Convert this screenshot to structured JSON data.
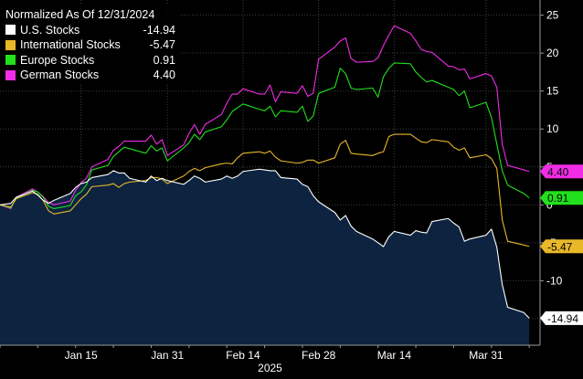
{
  "chart_data": {
    "type": "line",
    "title": "Normalized As Of 12/31/2024",
    "xlabel": "2025",
    "ylabel": "",
    "ylim": [
      -18.5,
      27
    ],
    "yticks": [
      -15,
      -10,
      -5,
      0,
      5,
      10,
      15,
      20,
      25
    ],
    "x_tick_labels": [
      "Jan 15",
      "Jan 31",
      "Feb 14",
      "Feb 28",
      "Mar 14",
      "Mar 31"
    ],
    "x_tick_dates": [
      "2025-01-15",
      "2025-01-31",
      "2025-02-14",
      "2025-02-28",
      "2025-03-14",
      "2025-03-31"
    ],
    "x_range": [
      "2024-12-31",
      "2025-04-10"
    ],
    "grid": true,
    "legend_position": "top-left",
    "axis_side": "right",
    "x": [
      "2024-12-31",
      "2025-01-02",
      "2025-01-03",
      "2025-01-06",
      "2025-01-07",
      "2025-01-08",
      "2025-01-09",
      "2025-01-10",
      "2025-01-13",
      "2025-01-14",
      "2025-01-15",
      "2025-01-16",
      "2025-01-17",
      "2025-01-20",
      "2025-01-21",
      "2025-01-22",
      "2025-01-23",
      "2025-01-24",
      "2025-01-27",
      "2025-01-28",
      "2025-01-29",
      "2025-01-30",
      "2025-01-31",
      "2025-02-03",
      "2025-02-04",
      "2025-02-05",
      "2025-02-06",
      "2025-02-07",
      "2025-02-10",
      "2025-02-11",
      "2025-02-12",
      "2025-02-13",
      "2025-02-14",
      "2025-02-17",
      "2025-02-18",
      "2025-02-19",
      "2025-02-20",
      "2025-02-21",
      "2025-02-24",
      "2025-02-25",
      "2025-02-26",
      "2025-02-27",
      "2025-02-28",
      "2025-03-03",
      "2025-03-04",
      "2025-03-05",
      "2025-03-06",
      "2025-03-07",
      "2025-03-10",
      "2025-03-11",
      "2025-03-12",
      "2025-03-13",
      "2025-03-14",
      "2025-03-17",
      "2025-03-18",
      "2025-03-19",
      "2025-03-20",
      "2025-03-21",
      "2025-03-24",
      "2025-03-25",
      "2025-03-26",
      "2025-03-27",
      "2025-03-28",
      "2025-03-31",
      "2025-04-01",
      "2025-04-02",
      "2025-04-03",
      "2025-04-04",
      "2025-04-07",
      "2025-04-08"
    ],
    "series": [
      {
        "name": "U.S. Stocks",
        "color": "#ffffff",
        "last_label": "-14.94",
        "fill": "#0d2340",
        "values": [
          0.0,
          0.2,
          1.0,
          1.8,
          1.3,
          0.6,
          0.2,
          0.6,
          1.5,
          2.3,
          2.8,
          3.0,
          3.6,
          4.0,
          4.5,
          4.2,
          4.2,
          3.5,
          3.0,
          3.8,
          3.2,
          3.5,
          3.2,
          2.7,
          3.2,
          3.8,
          3.5,
          3.0,
          3.4,
          3.8,
          3.5,
          3.8,
          4.4,
          4.7,
          4.6,
          4.5,
          4.5,
          3.6,
          3.4,
          2.7,
          2.4,
          1.2,
          0.4,
          -1.0,
          -2.0,
          -1.4,
          -2.8,
          -3.5,
          -4.5,
          -5.0,
          -5.5,
          -4.2,
          -3.5,
          -4.0,
          -3.4,
          -3.6,
          -3.7,
          -2.2,
          -1.8,
          -2.4,
          -2.9,
          -4.8,
          -4.5,
          -4.0,
          -3.2,
          -5.6,
          -10.5,
          -13.5,
          -14.2,
          -14.94
        ]
      },
      {
        "name": "International Stocks",
        "color": "#e8b829",
        "last_label": "-5.47",
        "values": [
          0.0,
          -0.3,
          0.8,
          1.6,
          1.4,
          0.6,
          -0.8,
          -1.2,
          -0.8,
          0.0,
          0.8,
          1.4,
          2.4,
          2.6,
          2.8,
          2.3,
          2.8,
          3.0,
          3.2,
          3.6,
          3.6,
          3.4,
          2.8,
          3.8,
          4.4,
          4.8,
          4.5,
          4.9,
          5.4,
          5.5,
          5.4,
          6.2,
          6.8,
          7.0,
          6.8,
          7.1,
          6.3,
          5.8,
          5.5,
          5.6,
          5.9,
          5.9,
          5.5,
          6.2,
          8.0,
          8.5,
          6.8,
          6.7,
          6.5,
          6.8,
          7.0,
          9.0,
          9.3,
          9.3,
          8.8,
          8.3,
          8.2,
          8.6,
          8.3,
          7.6,
          7.2,
          7.5,
          6.2,
          6.6,
          6.1,
          4.8,
          -2.0,
          -4.8,
          -5.3,
          -5.47
        ]
      },
      {
        "name": "Europe Stocks",
        "color": "#22e01c",
        "last_label": "0.91",
        "values": [
          0.0,
          -0.4,
          0.9,
          1.9,
          1.7,
          1.0,
          -0.2,
          -0.5,
          -0.1,
          1.2,
          1.7,
          2.6,
          4.6,
          5.2,
          6.4,
          7.0,
          7.6,
          7.4,
          6.8,
          7.8,
          7.1,
          7.5,
          5.8,
          7.5,
          8.2,
          9.3,
          8.6,
          9.6,
          10.3,
          11.2,
          12.3,
          12.8,
          13.3,
          12.6,
          12.4,
          13.0,
          11.6,
          12.4,
          12.2,
          13.0,
          11.0,
          11.7,
          14.7,
          15.5,
          18.0,
          17.3,
          15.4,
          15.2,
          15.4,
          14.2,
          16.9,
          18.0,
          18.7,
          18.6,
          17.5,
          16.8,
          16.2,
          16.4,
          15.5,
          15.2,
          14.4,
          15.0,
          12.8,
          13.5,
          11.5,
          8.0,
          4.5,
          2.6,
          1.5,
          0.91
        ]
      },
      {
        "name": "German Stocks",
        "color": "#f12ce6",
        "last_label": "4.40",
        "values": [
          0.0,
          -0.5,
          1.0,
          2.1,
          1.7,
          1.1,
          0.3,
          0.0,
          0.5,
          1.9,
          2.9,
          3.5,
          5.0,
          6.0,
          7.2,
          7.7,
          8.4,
          8.4,
          8.4,
          9.2,
          8.0,
          8.6,
          6.5,
          7.9,
          9.4,
          10.6,
          9.3,
          10.6,
          11.9,
          13.4,
          14.6,
          14.6,
          15.3,
          14.6,
          14.6,
          15.8,
          13.6,
          14.9,
          14.7,
          15.7,
          14.3,
          14.7,
          19.2,
          20.8,
          21.6,
          22.0,
          19.3,
          18.8,
          18.9,
          19.4,
          21.0,
          22.4,
          23.6,
          22.6,
          21.6,
          20.5,
          20.2,
          20.1,
          18.3,
          18.2,
          17.8,
          17.9,
          16.6,
          17.3,
          17.0,
          15.5,
          8.0,
          5.2,
          4.6,
          4.4
        ]
      }
    ]
  }
}
